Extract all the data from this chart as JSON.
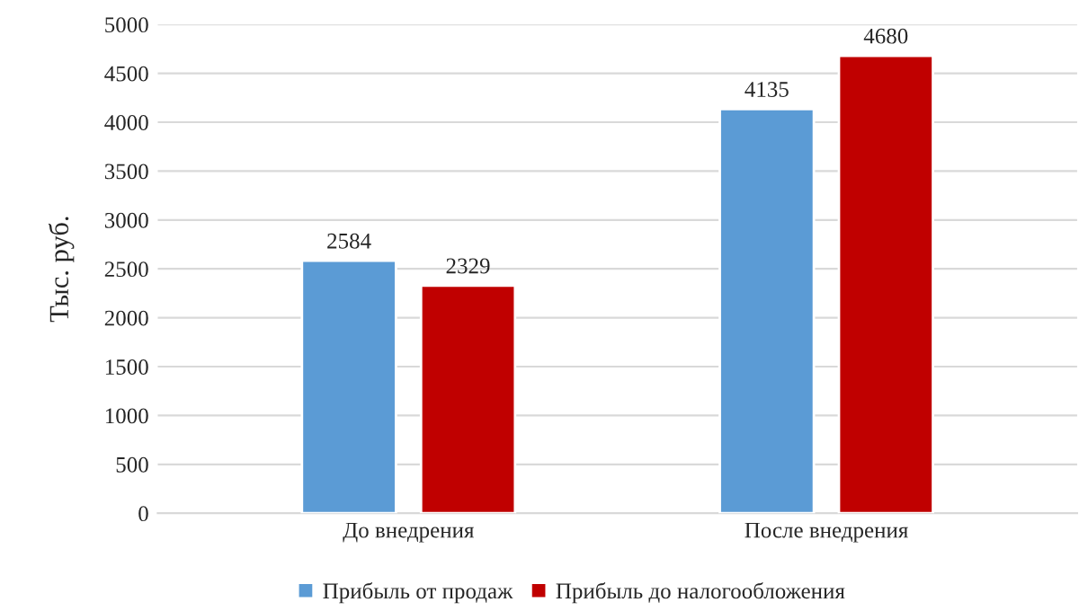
{
  "chart_data": {
    "type": "bar",
    "ylabel": "Тыс. руб.",
    "categories": [
      "До внедрения",
      "После внедрения"
    ],
    "series": [
      {
        "name": "Прибыль от продаж",
        "color": "#5b9bd5",
        "values": [
          2584,
          4135
        ]
      },
      {
        "name": "Прибыль до налогообложения",
        "color": "#c00000",
        "values": [
          2329,
          4680
        ]
      }
    ],
    "ylim": [
      0,
      5000
    ],
    "yticks": [
      0,
      500,
      1000,
      1500,
      2000,
      2500,
      3000,
      3500,
      4000,
      4500,
      5000
    ],
    "grid": "y",
    "legend": "bottom",
    "data_labels": true
  }
}
